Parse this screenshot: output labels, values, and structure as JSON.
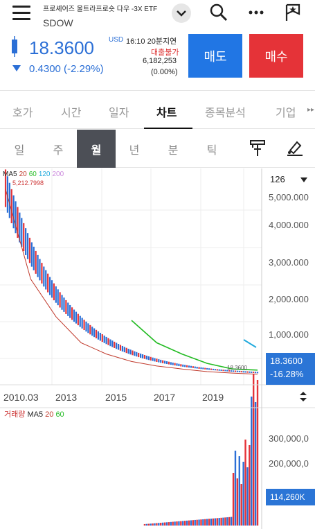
{
  "header": {
    "name": "프로셰어즈 울트라프로숏 다우 -3X ETF",
    "code": "SDOW"
  },
  "quote": {
    "price": "18.3600",
    "change": "0.4300 (-2.29%)",
    "currency": "USD",
    "time_info": "16:10 20분지연",
    "loan_status": "대출불가",
    "volume": "6,182,253",
    "volume_pct": "(0.00%)",
    "sell_label": "매도",
    "buy_label": "매수"
  },
  "tabs": [
    "호가",
    "시간",
    "일자",
    "차트",
    "종목분석",
    "기업"
  ],
  "periods": [
    "일",
    "주",
    "월",
    "년",
    "분",
    "틱"
  ],
  "chart": {
    "count": "126",
    "ma_legend": [
      "MA5",
      "20",
      "60",
      "120",
      "200"
    ],
    "max_label": "5,212.7998",
    "last_label": "18.3600",
    "price_tag": "18.3600",
    "price_tag_pct": "-16.28%",
    "y_ticks": [
      "5,000.000",
      "4,000.000",
      "3,000.000",
      "2,000.000",
      "1,000.000"
    ],
    "x_ticks": [
      "2010.03",
      "2013",
      "2015",
      "2017",
      "2019"
    ],
    "volume_legend": [
      "거래량",
      "MA5",
      "20",
      "60"
    ],
    "volume_ticks": [
      "300,000,0",
      "200,000,0"
    ],
    "volume_tag": "114,260K"
  },
  "colors": {
    "up": "#e53338",
    "down": "#2b6fd6",
    "ma5": "#222222",
    "ma20": "#c0392b",
    "ma60": "#22bb22",
    "ma120": "#22aadd",
    "ma200": "#cc88dd"
  },
  "chart_data": {
    "type": "line",
    "x": [
      "2010.03",
      "2011",
      "2012",
      "2013",
      "2014",
      "2015",
      "2016",
      "2017",
      "2018",
      "2019",
      "2020"
    ],
    "series": [
      {
        "name": "MA20",
        "values": [
          5000,
          2600,
          1600,
          900,
          600,
          400,
          280,
          200,
          130,
          90,
          60
        ]
      },
      {
        "name": "MA60",
        "values": [
          null,
          null,
          null,
          null,
          null,
          1500,
          900,
          600,
          350,
          200,
          170
        ]
      }
    ],
    "ylim": [
      0,
      5300
    ]
  }
}
